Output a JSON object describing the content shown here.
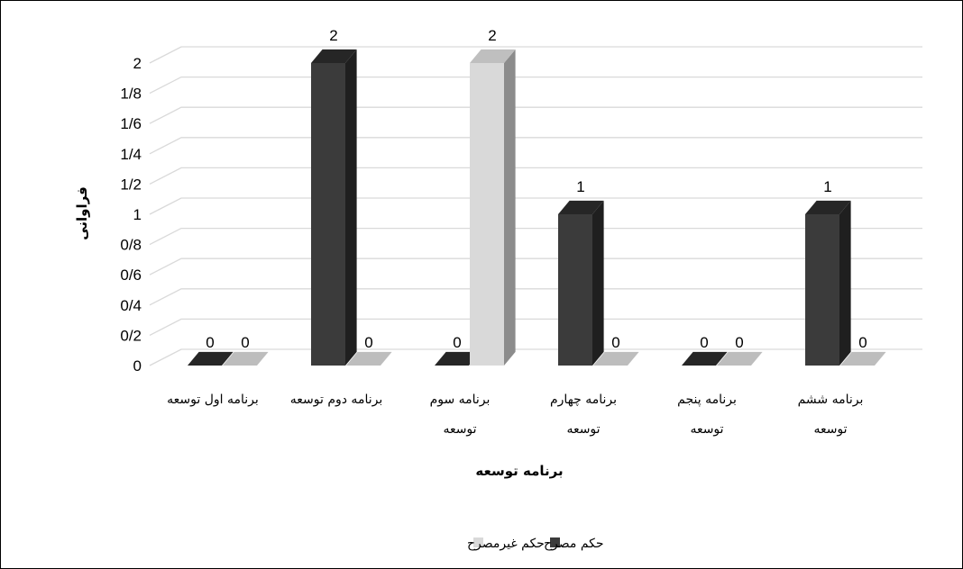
{
  "chart_data": {
    "type": "bar",
    "title": "",
    "xlabel": "برنامه توسعه",
    "ylabel": "فراوانی",
    "ylim": [
      0,
      2
    ],
    "y_ticks": [
      "0",
      "0/2",
      "0/4",
      "0/6",
      "0/8",
      "1",
      "1/2",
      "1/4",
      "1/6",
      "1/8",
      "2"
    ],
    "categories": [
      [
        "برنامه اول توسعه"
      ],
      [
        "برنامه دوم توسعه"
      ],
      [
        "برنامه سوم",
        "توسعه"
      ],
      [
        "برنامه چهارم",
        "توسعه"
      ],
      [
        "برنامه پنجم",
        "توسعه"
      ],
      [
        "برنامه ششم",
        "توسعه"
      ]
    ],
    "series": [
      {
        "name": "حکم مصرح",
        "values": [
          0,
          2,
          0,
          1,
          0,
          1
        ],
        "color": "#3b3b3b"
      },
      {
        "name": "حکم غیرمصرح",
        "values": [
          0,
          0,
          2,
          0,
          0,
          0
        ],
        "color": "#d9d9d9"
      }
    ],
    "data_labels": true,
    "grid": true,
    "style": "3d-column",
    "legend_position": "bottom"
  }
}
